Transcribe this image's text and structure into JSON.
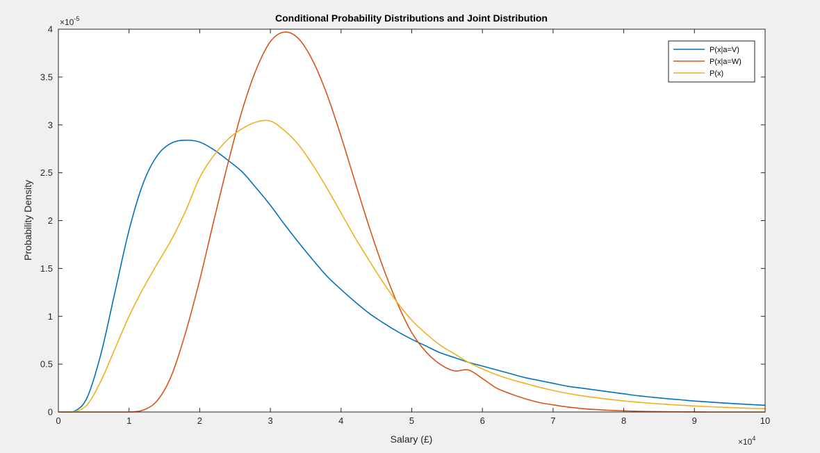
{
  "chart_data": {
    "type": "line",
    "title": "Conditional Probability Distributions and Joint Distribution",
    "xlabel": "Salary (£)",
    "ylabel": "Probability Density",
    "x_exponent_label": "×10",
    "x_exponent_power": "4",
    "y_exponent_label": "×10",
    "y_exponent_power": "-5",
    "xlim": [
      0,
      100000
    ],
    "ylim": [
      0,
      4e-05
    ],
    "x_tick_values": [
      0,
      10000,
      20000,
      30000,
      40000,
      50000,
      60000,
      70000,
      80000,
      90000,
      100000
    ],
    "x_tick_labels": [
      "0",
      "1",
      "2",
      "3",
      "4",
      "5",
      "6",
      "7",
      "8",
      "9",
      "10"
    ],
    "y_tick_values": [
      0,
      5e-06,
      1e-05,
      1.5e-05,
      2e-05,
      2.5e-05,
      3e-05,
      3.5e-05,
      4e-05
    ],
    "y_tick_labels": [
      "0",
      "0.5",
      "1",
      "1.5",
      "2",
      "2.5",
      "3",
      "3.5",
      "4"
    ],
    "grid": false,
    "legend_position": "top-right",
    "x": [
      0,
      2000,
      4000,
      6000,
      8000,
      10000,
      12000,
      14000,
      16000,
      18000,
      20000,
      22000,
      24000,
      26000,
      28000,
      30000,
      32000,
      34000,
      36000,
      38000,
      40000,
      42000,
      44000,
      46000,
      48000,
      50000,
      52000,
      54000,
      56000,
      58000,
      60000,
      62000,
      64000,
      66000,
      68000,
      70000,
      72000,
      74000,
      76000,
      78000,
      80000,
      82000,
      84000,
      86000,
      88000,
      90000,
      92000,
      94000,
      96000,
      98000,
      100000
    ],
    "series": [
      {
        "name": "P(x|a=V)",
        "color": "#0072BD",
        "values": [
          0,
          0,
          1.4e-06,
          6e-06,
          1.25e-05,
          1.9e-05,
          2.39e-05,
          2.68e-05,
          2.81e-05,
          2.84e-05,
          2.82e-05,
          2.74e-05,
          2.63e-05,
          2.51e-05,
          2.34e-05,
          2.16e-05,
          1.96e-05,
          1.77e-05,
          1.59e-05,
          1.42e-05,
          1.28e-05,
          1.15e-05,
          1.03e-05,
          9.3e-06,
          8.4e-06,
          7.6e-06,
          6.9e-06,
          6.2e-06,
          5.7e-06,
          5.2e-06,
          4.8e-06,
          4.4e-06,
          4e-06,
          3.6e-06,
          3.3e-06,
          3e-06,
          2.7e-06,
          2.5e-06,
          2.3e-06,
          2.1e-06,
          1.9e-06,
          1.7e-06,
          1.55e-06,
          1.4e-06,
          1.28e-06,
          1.15e-06,
          1.05e-06,
          9.5e-07,
          8.6e-07,
          7.8e-07,
          7e-07
        ]
      },
      {
        "name": "P(x|a=W)",
        "color": "#D95319",
        "values": [
          0,
          0,
          0,
          0,
          0,
          0,
          2e-07,
          1.2e-06,
          3.8e-06,
          8.3e-06,
          1.38e-05,
          2e-05,
          2.6e-05,
          3.15e-05,
          3.58e-05,
          3.87e-05,
          3.97e-05,
          3.9e-05,
          3.67e-05,
          3.32e-05,
          2.88e-05,
          2.4e-05,
          1.93e-05,
          1.5e-05,
          1.13e-05,
          8.3e-06,
          6.3e-06,
          5e-06,
          4.3e-06,
          4.4e-06,
          3.5e-06,
          2.5e-06,
          1.9e-06,
          1.4e-06,
          1e-06,
          7.5e-07,
          5.3e-07,
          3.7e-07,
          2.6e-07,
          1.8e-07,
          1.2e-07,
          8e-08,
          5e-08,
          3e-08,
          2e-08,
          1e-08,
          0,
          0,
          0,
          0,
          0
        ]
      },
      {
        "name": "P(x)",
        "color": "#EDB120",
        "values": [
          0,
          0,
          7e-07,
          3.2e-06,
          6.6e-06,
          1e-05,
          1.29e-05,
          1.55e-05,
          1.8e-05,
          2.1e-05,
          2.45e-05,
          2.68e-05,
          2.85e-05,
          2.96e-05,
          3.03e-05,
          3.04e-05,
          2.94e-05,
          2.79e-05,
          2.58e-05,
          2.34e-05,
          2.08e-05,
          1.82e-05,
          1.58e-05,
          1.35e-05,
          1.14e-05,
          9.6e-06,
          8.2e-06,
          7e-06,
          6.1e-06,
          5.2e-06,
          4.5e-06,
          3.9e-06,
          3.4e-06,
          3e-06,
          2.6e-06,
          2.25e-06,
          1.95e-06,
          1.7e-06,
          1.5e-06,
          1.32e-06,
          1.16e-06,
          1.02e-06,
          9e-07,
          8e-07,
          7.1e-07,
          6.3e-07,
          5.6e-07,
          5e-07,
          4.4e-07,
          3.9e-07,
          3.5e-07
        ]
      }
    ]
  }
}
